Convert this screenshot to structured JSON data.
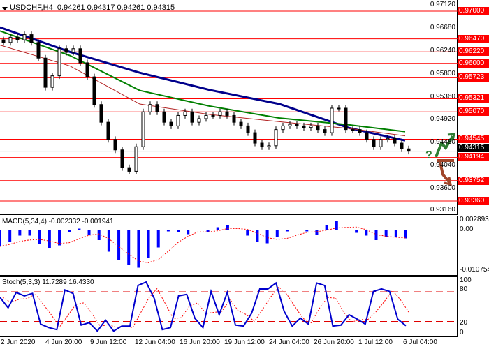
{
  "header": {
    "symbol": "USDCHF,H4",
    "ohlc": "0.94261 0.94317 0.94261 0.94315"
  },
  "colors": {
    "level": "#ff0000",
    "ma_slow": "#00008b",
    "ma_mid": "#008000",
    "ma_fast": "#b22222",
    "macd_hist": "#0000ff",
    "signal": "#ff0000",
    "stoch_main": "#0000cd",
    "up_arrow": "#2e7d32",
    "down_arrow": "#a0462a"
  },
  "price_axis": {
    "ticks": [
      "0.97120",
      "0.96680",
      "0.96240",
      "0.95800",
      "0.95360",
      "0.94920",
      "0.94480",
      "0.94040",
      "0.93600",
      "0.93160"
    ]
  },
  "levels": [
    "0.97000",
    "0.96470",
    "0.96220",
    "0.96000",
    "0.95723",
    "0.95321",
    "0.95070",
    "0.94545",
    "0.94194",
    "0.93752",
    "0.93360"
  ],
  "current_price": "0.94315",
  "forecast_icons": [
    "question-mark",
    "up-arrow",
    "down-arrow"
  ],
  "x_axis": {
    "labels": [
      "2 Jun 2020",
      "4 Jun 20:00",
      "9 Jun 12:00",
      "12 Jun 04:00",
      "16 Jun 20:00",
      "19 Jun 12:00",
      "24 Jun 04:00",
      "26 Jun 20:00",
      "1 Jul 12:00",
      "6 Jul 04:00"
    ]
  },
  "chart_data": [
    {
      "type": "candlestick",
      "title": "USDCHF,H4",
      "ylim": [
        0.9316,
        0.9712
      ],
      "close": [
        0.964,
        0.965,
        0.9645,
        0.9655,
        0.964,
        0.961,
        0.9554,
        0.9576,
        0.9628,
        0.9621,
        0.9628,
        0.9601,
        0.9574,
        0.9521,
        0.9487,
        0.9454,
        0.9434,
        0.94,
        0.9393,
        0.944,
        0.9507,
        0.9521,
        0.9507,
        0.9487,
        0.948,
        0.95,
        0.9507,
        0.9487,
        0.9494,
        0.95,
        0.95,
        0.9507,
        0.95,
        0.9487,
        0.948,
        0.9467,
        0.9447,
        0.944,
        0.9442,
        0.9473,
        0.948,
        0.9483,
        0.948,
        0.9477,
        0.948,
        0.9473,
        0.9467,
        0.9514,
        0.9514,
        0.9473,
        0.9473,
        0.9467,
        0.9454,
        0.944,
        0.9454,
        0.9456,
        0.9447,
        0.9436,
        0.94315
      ],
      "moving_averages": [
        {
          "values": [
            0.9669,
            0.9622,
            0.9582,
            0.9549,
            0.9522,
            0.9476,
            0.9452
          ]
        },
        {
          "values": [
            0.9662,
            0.9615,
            0.9548,
            0.9518,
            0.9495,
            0.9482,
            0.9469
          ]
        },
        {
          "values": [
            0.9635,
            0.9595,
            0.9522,
            0.9502,
            0.9488,
            0.9475,
            0.9461
          ]
        }
      ],
      "horizontal_levels": [
        0.97,
        0.9647,
        0.9622,
        0.96,
        0.95723,
        0.95321,
        0.9507,
        0.94545,
        0.94194,
        0.93752,
        0.9336
      ]
    },
    {
      "type": "bar",
      "title": "MACD(5,34,4) -0.002332 -0.001941",
      "ylim": [
        -0.010754,
        0.002893
      ],
      "ticks": [
        "0.002893",
        "0.00",
        "-0.010754"
      ],
      "values": [
        -0.0046,
        -0.0034,
        -0.0015,
        -0.0015,
        -0.004,
        -0.0052,
        -0.0043,
        -0.0006,
        0.0005,
        -0.0012,
        -0.0028,
        -0.0061,
        -0.0086,
        -0.0098,
        -0.0107,
        -0.008,
        -0.0049,
        -0.0003,
        -0.0005,
        -0.0011,
        0.0002,
        -0.0005,
        0.0009,
        0.0015,
        0.0002,
        -0.0015,
        -0.0034,
        -0.0037,
        -0.0018,
        -0.0003,
        0.0002,
        -0.0003,
        -0.0012,
        0.0015,
        0.0028,
        0.0002,
        -0.0007,
        -0.0015,
        -0.0028,
        -0.0018,
        -0.0018,
        -0.0023
      ]
    },
    {
      "type": "line",
      "title": "Stoch(5,3,3) 11.7289 16.4330",
      "ylim": [
        0,
        100
      ],
      "ticks": [
        "100",
        "80",
        "20",
        "0"
      ],
      "levels": [
        80,
        20
      ],
      "values": [
        69,
        48,
        79,
        72,
        77,
        15,
        8,
        4,
        84,
        77,
        13,
        18,
        1,
        23,
        1,
        11,
        11,
        93,
        100,
        67,
        4,
        8,
        72,
        75,
        27,
        8,
        81,
        34,
        79,
        13,
        11,
        37,
        86,
        86,
        98,
        41,
        11,
        27,
        15,
        98,
        93,
        11,
        13,
        34,
        25,
        15,
        81,
        86,
        81,
        25,
        11.7
      ]
    }
  ]
}
